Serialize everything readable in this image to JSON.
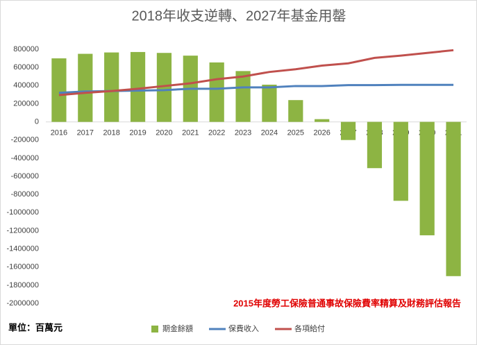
{
  "chart_data": {
    "type": "bar",
    "title": "2018年收支逆轉、2027年基金用罄",
    "annotation": "2015年度勞工保險普通事故保險費率精算及財務評估報告",
    "unit_label": "單位：百萬元",
    "categories": [
      "2016",
      "2017",
      "2018",
      "2019",
      "2020",
      "2021",
      "2022",
      "2023",
      "2024",
      "2025",
      "2026",
      "2027",
      "2028",
      "2029",
      "2030",
      "2031"
    ],
    "series": [
      {
        "name": "期金餘額",
        "color": "#8db443",
        "kind": "bar",
        "values": [
          700000,
          750000,
          765000,
          770000,
          760000,
          730000,
          655000,
          560000,
          410000,
          240000,
          30000,
          -200000,
          -510000,
          -870000,
          -1250000,
          -1700000
        ]
      },
      {
        "name": "保費收入",
        "color": "#4f81bd",
        "kind": "line",
        "values": [
          320000,
          335000,
          340000,
          345000,
          350000,
          365000,
          365000,
          380000,
          380000,
          395000,
          395000,
          405000,
          405000,
          408000,
          408000,
          408000
        ]
      },
      {
        "name": "各項給付",
        "color": "#c0504d",
        "kind": "line",
        "values": [
          295000,
          320000,
          340000,
          365000,
          395000,
          425000,
          470000,
          500000,
          550000,
          580000,
          620000,
          645000,
          705000,
          730000,
          760000,
          790000
        ]
      }
    ],
    "ylim": [
      -2000000,
      800000
    ],
    "yticks": [
      800000,
      600000,
      400000,
      200000,
      0,
      -200000,
      -400000,
      -600000,
      -800000,
      -1000000,
      -1200000,
      -1400000,
      -1600000,
      -1800000,
      -2000000
    ]
  }
}
